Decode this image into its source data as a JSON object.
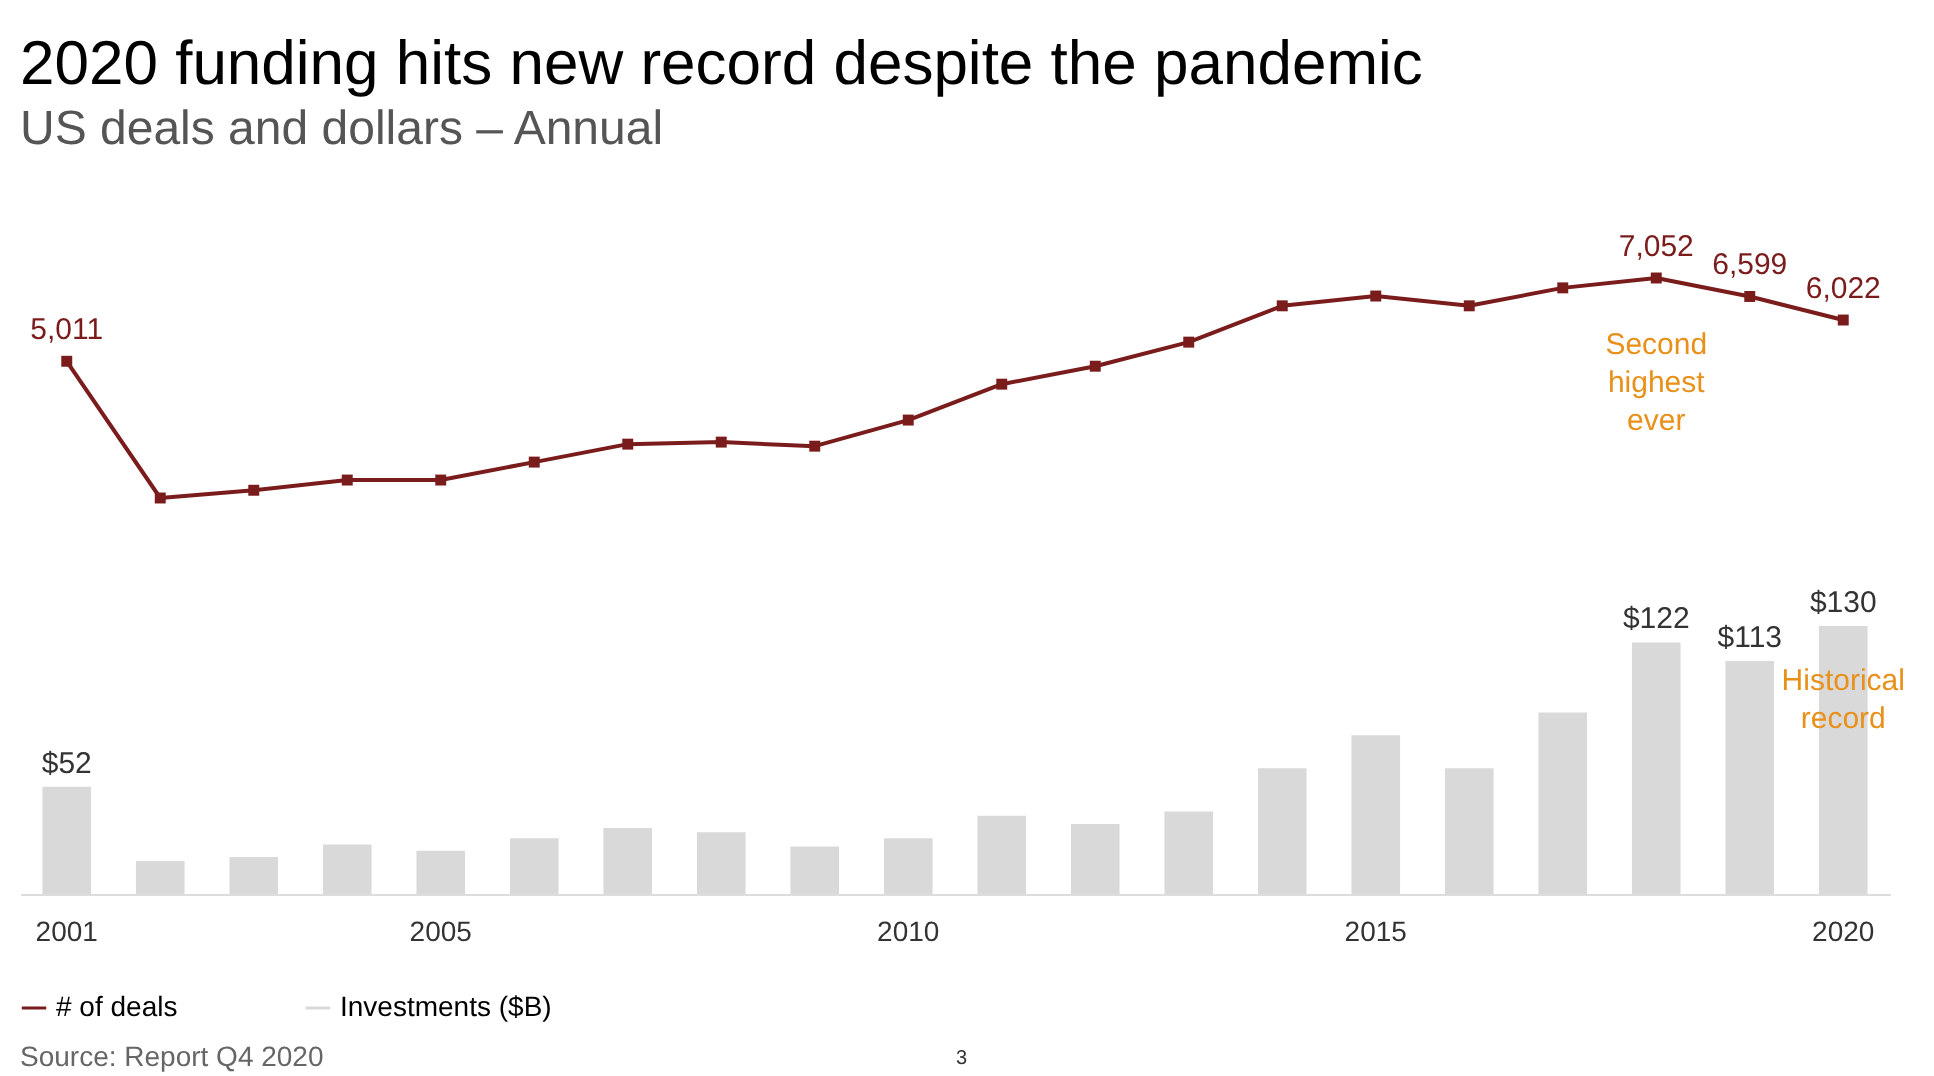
{
  "chart_data": [
    {
      "type": "line",
      "title": "2020 funding hits new record despite the pandemic",
      "subtitle": "US deals and dollars – Annual",
      "categories": [
        "2001",
        null,
        null,
        null,
        "2005",
        null,
        null,
        null,
        null,
        "2010",
        null,
        null,
        null,
        null,
        "2015",
        null,
        null,
        null,
        null,
        "2020"
      ],
      "tick_labels": false,
      "legend": "bottom",
      "marker": "square",
      "series": [
        {
          "name": "# of deals",
          "color": "#7b1c1c",
          "values": [
            5011,
            1660,
            1850,
            2100,
            2100,
            2540,
            2980,
            3030,
            2930,
            3570,
            4450,
            4890,
            5480,
            6370,
            6610,
            6370,
            6810,
            7052,
            6599,
            6022
          ],
          "value_labels": [
            "5,011",
            null,
            null,
            null,
            null,
            null,
            null,
            null,
            null,
            null,
            null,
            null,
            null,
            null,
            null,
            null,
            null,
            "7,052",
            "6,599",
            "6,022"
          ]
        }
      ],
      "annotations": [
        "Second highest ever"
      ]
    },
    {
      "type": "bar",
      "categories": [
        "2001",
        null,
        null,
        null,
        "2005",
        null,
        null,
        null,
        null,
        "2010",
        null,
        null,
        null,
        null,
        "2015",
        null,
        null,
        null,
        null,
        "2020"
      ],
      "tick_labels": "x",
      "legend": "bottom",
      "series": [
        {
          "name": "Investments ($B)",
          "color": "#d9d9d9",
          "values": [
            52,
            16,
            18,
            24,
            21,
            27,
            32,
            30,
            23,
            27,
            38,
            34,
            40,
            61,
            77,
            61,
            88,
            122,
            113,
            130
          ],
          "value_labels": [
            "$52",
            null,
            null,
            null,
            null,
            null,
            null,
            null,
            null,
            null,
            null,
            null,
            null,
            null,
            null,
            null,
            null,
            "$122",
            "$113",
            "$130"
          ]
        }
      ],
      "annotations": [
        "Historical record",
        "Source: Report Q4 2020",
        "3"
      ]
    }
  ]
}
